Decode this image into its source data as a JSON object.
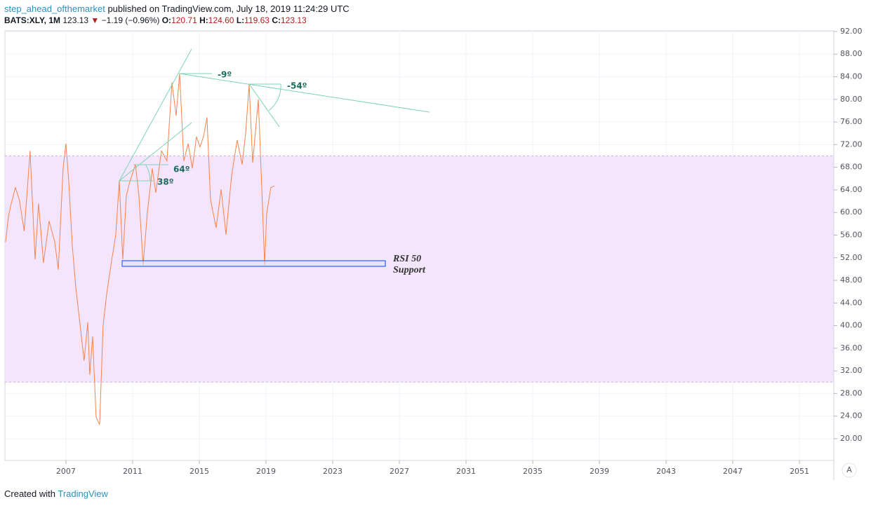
{
  "header": {
    "author": "step_ahead_ofthemarket",
    "published": "published on TradingView.com, July 18, 2019 11:24:29 UTC",
    "symbol": "BATS:XLY, 1M",
    "price": "123.13",
    "arrow": "▼",
    "change": "−1.19 (−0.96%)",
    "o_label": "O:",
    "o": "120.71",
    "h_label": "H:",
    "h": "124.60",
    "l_label": "L:",
    "l": "119.63",
    "c_label": "C:",
    "c": "123.13"
  },
  "footer": {
    "created": "Created with",
    "brand": "TradingView"
  },
  "axis_button": "A",
  "chart_data": {
    "type": "line",
    "x": [
      2003.38,
      2003.55,
      2003.67,
      2003.97,
      2004.2,
      2004.5,
      2004.85,
      2005.15,
      2005.36,
      2005.65,
      2005.99,
      2006.33,
      2006.54,
      2006.83,
      2007.0,
      2007.17,
      2007.38,
      2007.59,
      2007.88,
      2008.09,
      2008.31,
      2008.43,
      2008.6,
      2008.81,
      2009.02,
      2009.23,
      2009.44,
      2009.69,
      2009.99,
      2010.2,
      2010.41,
      2010.62,
      2010.83,
      2011.17,
      2011.38,
      2011.63,
      2011.88,
      2012.18,
      2012.39,
      2012.73,
      2013.06,
      2013.36,
      2013.61,
      2013.82,
      2014.07,
      2014.33,
      2014.58,
      2014.83,
      2015.04,
      2015.25,
      2015.46,
      2015.67,
      2016.01,
      2016.31,
      2016.6,
      2016.94,
      2017.27,
      2017.57,
      2017.78,
      2017.99,
      2018.2,
      2018.54,
      2018.75,
      2018.92,
      2019.04,
      2019.29,
      2019.5
    ],
    "series": [
      {
        "name": "RSI",
        "color": "#f7834a",
        "values": [
          54.8,
          59.2,
          61,
          64.4,
          62.3,
          56.7,
          70.9,
          51.7,
          61.6,
          51.1,
          58.5,
          54.8,
          49.9,
          67.8,
          72.2,
          65.4,
          54.2,
          46.8,
          39.3,
          33.8,
          40.6,
          31.3,
          38.1,
          23.8,
          22.5,
          40,
          45.5,
          50.5,
          56.1,
          65.6,
          51.7,
          62.9,
          65.4,
          68.5,
          62.9,
          50.7,
          59.8,
          67.8,
          63.5,
          70.9,
          69.1,
          83,
          77.1,
          84.6,
          69.1,
          72.2,
          67.8,
          73.4,
          71.6,
          73.4,
          76.8,
          62.3,
          57.3,
          64.1,
          56.1,
          66.6,
          72.8,
          68.5,
          74,
          82.7,
          68.8,
          80,
          64.1,
          50.7,
          59.8,
          64.4,
          64.7
        ]
      }
    ],
    "band": [
      30,
      70
    ],
    "band_color": "#f3e5fc",
    "xlim": [
      2003.34,
      2053.06
    ],
    "xticks": [
      2007,
      2011,
      2015,
      2019,
      2023,
      2027,
      2031,
      2035,
      2039,
      2043,
      2047,
      2051
    ],
    "ylim": [
      16.16,
      92.12
    ],
    "yticks": [
      {
        "value": 20,
        "label": "20.00"
      },
      {
        "value": 24,
        "label": "24.00"
      },
      {
        "value": 28,
        "label": "28.00"
      },
      {
        "value": 32,
        "label": "32.00"
      },
      {
        "value": 36,
        "label": "36.00"
      },
      {
        "value": 40,
        "label": "40.00"
      },
      {
        "value": 44,
        "label": "44.00"
      },
      {
        "value": 48,
        "label": "48.00"
      },
      {
        "value": 52,
        "label": "52.00"
      },
      {
        "value": 56,
        "label": "56.00"
      },
      {
        "value": 60,
        "label": "60.00"
      },
      {
        "value": 64,
        "label": "64.00"
      },
      {
        "value": 68,
        "label": "68.00"
      },
      {
        "value": 72,
        "label": "72.00"
      },
      {
        "value": 76,
        "label": "76.00"
      },
      {
        "value": 80,
        "label": "80.00"
      },
      {
        "value": 84,
        "label": "84.00"
      },
      {
        "value": 88,
        "label": "88.00"
      },
      {
        "value": 92,
        "label": "92.00"
      }
    ],
    "grid": true,
    "annotations": [
      "-9º",
      "-54º",
      "64º",
      "38º",
      "RSI 50",
      "Support"
    ]
  }
}
